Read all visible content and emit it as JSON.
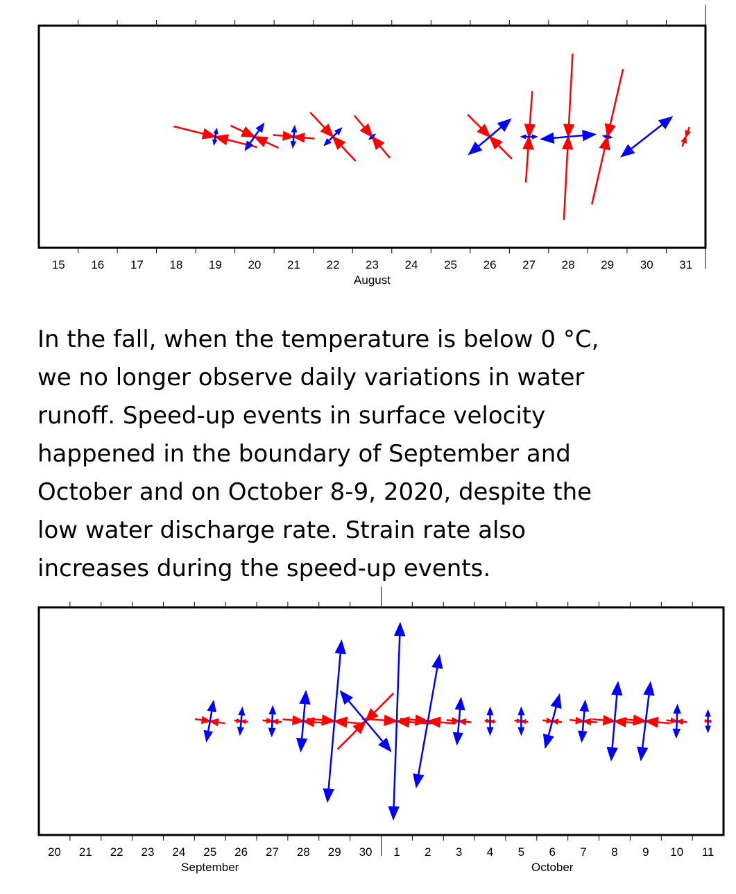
{
  "chart_data": [
    {
      "type": "strain_cross",
      "groups": [
        {
          "name": "August",
          "categories": [
            "15",
            "16",
            "17",
            "18",
            "19",
            "20",
            "21",
            "22",
            "23",
            "24",
            "25",
            "26",
            "27",
            "28",
            "29",
            "30",
            "31"
          ]
        }
      ],
      "compression": {
        "color": "#ff0000",
        "values": [
          null,
          null,
          null,
          null,
          62,
          38,
          30,
          48,
          40,
          null,
          null,
          45,
          66,
          120,
          100,
          null,
          15
        ],
        "angles": [
          null,
          null,
          null,
          null,
          -14,
          -25,
          -5,
          -47,
          -50,
          null,
          null,
          -45,
          86,
          87,
          77,
          null,
          70
        ]
      },
      "extension": {
        "color": "#0000ff",
        "values": [
          null,
          null,
          null,
          null,
          10,
          22,
          14,
          16,
          4,
          null,
          null,
          38,
          10,
          38,
          5,
          45,
          null
        ],
        "angles": [
          null,
          null,
          null,
          null,
          80,
          55,
          85,
          45,
          40,
          null,
          null,
          40,
          0,
          5,
          -10,
          38,
          null
        ]
      }
    },
    {
      "type": "strain_cross",
      "groups": [
        {
          "name": "September",
          "categories": [
            "20",
            "21",
            "22",
            "23",
            "24",
            "25",
            "26",
            "27",
            "28",
            "29",
            "30"
          ]
        },
        {
          "name": "October",
          "categories": [
            "1",
            "2",
            "3",
            "4",
            "5",
            "6",
            "7",
            "8",
            "9",
            "10",
            "11"
          ]
        }
      ],
      "compression": {
        "color": "#ff0000",
        "values": [
          null,
          null,
          null,
          null,
          null,
          22,
          10,
          14,
          30,
          40,
          57,
          50,
          40,
          18,
          8,
          10,
          14,
          20,
          32,
          35,
          15,
          5
        ],
        "angles": [
          null,
          null,
          null,
          null,
          null,
          -8,
          -5,
          -5,
          -5,
          -5,
          45,
          -4,
          -5,
          -5,
          -5,
          -5,
          -5,
          -5,
          -5,
          -5,
          -5,
          -5
        ]
      },
      "extension": {
        "color": "#0000ff",
        "values": [
          null,
          null,
          null,
          null,
          null,
          28,
          18,
          20,
          42,
          115,
          55,
          140,
          95,
          32,
          18,
          18,
          38,
          28,
          55,
          55,
          22,
          14
        ],
        "angles": [
          null,
          null,
          null,
          null,
          null,
          80,
          85,
          88,
          85,
          85,
          -50,
          88,
          80,
          85,
          90,
          90,
          75,
          85,
          85,
          83,
          88,
          90
        ]
      }
    }
  ],
  "paragraph": [
    "In the fall, when the temperature is below 0 °C,",
    "we no longer observe daily variations in water",
    "runoff. Speed-up events in surface velocity",
    "happened in the boundary of September and",
    "October and on October 8-9, 2020, despite the",
    "low water discharge rate. Strain rate also",
    "increases during the speed-up events."
  ]
}
